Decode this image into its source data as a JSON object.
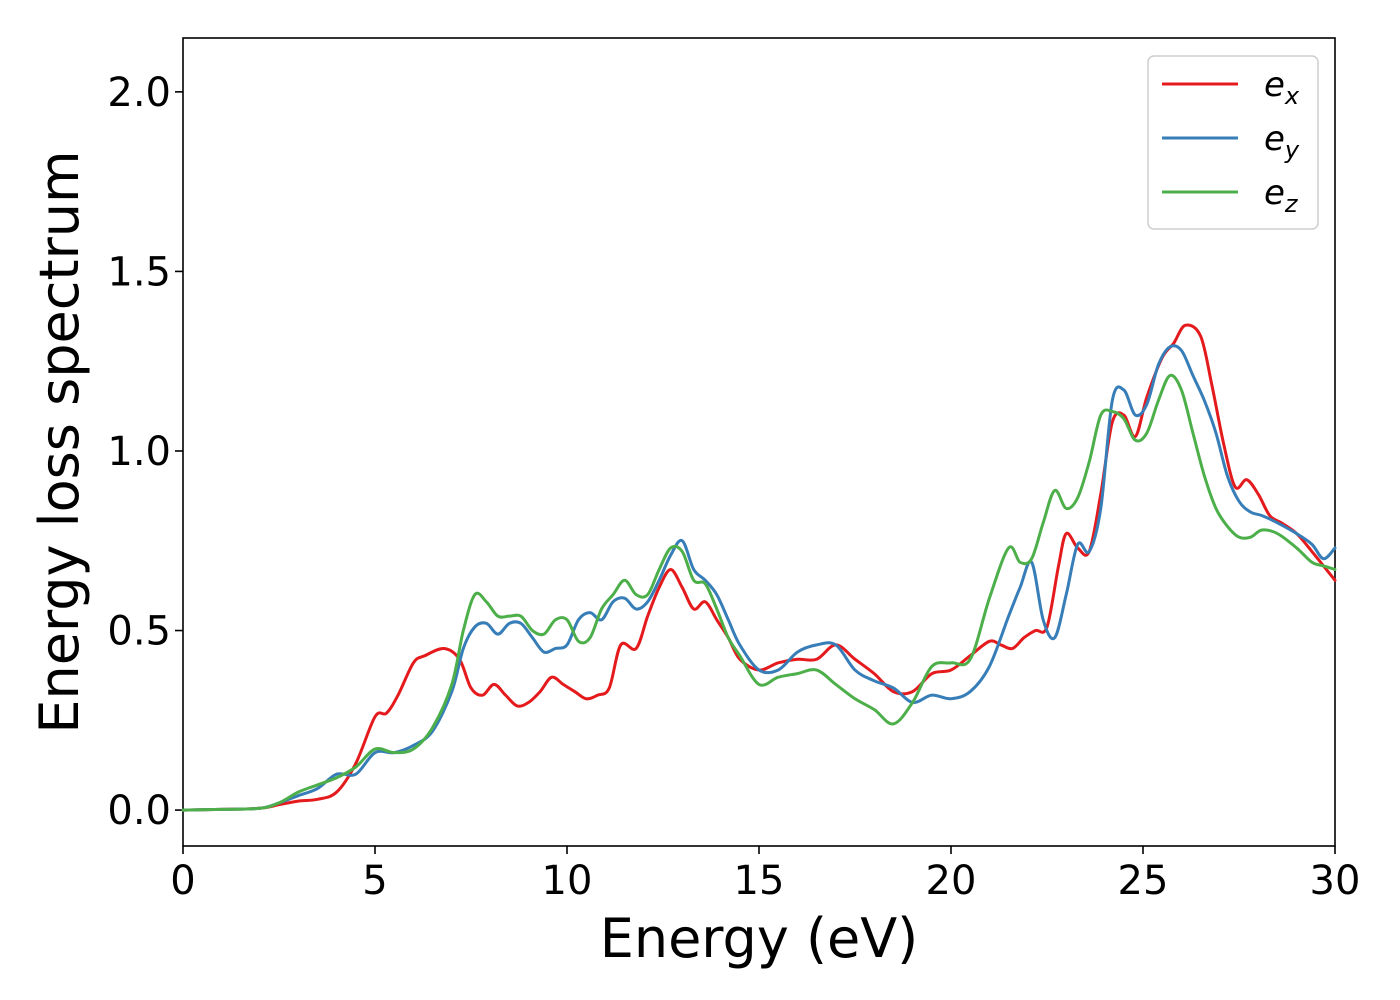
{
  "chart_data": {
    "type": "line",
    "title": "",
    "xlabel": "Energy (eV)",
    "ylabel": "Energy loss spectrum",
    "xlim": [
      0,
      30
    ],
    "ylim": [
      -0.1,
      2.15
    ],
    "xticks": [
      0,
      5,
      10,
      15,
      20,
      25,
      30
    ],
    "xtick_labels": [
      "0",
      "5",
      "10",
      "15",
      "20",
      "25",
      "30"
    ],
    "yticks": [
      0.0,
      0.5,
      1.0,
      1.5,
      2.0
    ],
    "ytick_labels": [
      "0.0",
      "0.5",
      "1.0",
      "1.5",
      "2.0"
    ],
    "grid": false,
    "legend_position": "top-right",
    "series": [
      {
        "name": "e_x",
        "name_base": "e",
        "name_sub": "x",
        "color": "#e41a1c",
        "x": [
          0,
          1,
          2,
          2.5,
          3,
          3.5,
          4,
          4.5,
          5,
          5.3,
          5.6,
          6,
          6.3,
          6.8,
          7.2,
          7.5,
          7.8,
          8.1,
          8.4,
          8.7,
          9.0,
          9.3,
          9.6,
          9.9,
          10.2,
          10.5,
          10.8,
          11.1,
          11.4,
          11.8,
          12.1,
          12.4,
          12.7,
          13.0,
          13.3,
          13.6,
          13.9,
          14.2,
          14.5,
          15.0,
          15.5,
          16.0,
          16.5,
          17.0,
          17.5,
          18.0,
          18.5,
          19.0,
          19.5,
          20.0,
          20.5,
          21.0,
          21.3,
          21.6,
          21.9,
          22.2,
          22.5,
          22.8,
          23.0,
          23.3,
          23.6,
          23.9,
          24.2,
          24.5,
          24.8,
          25.1,
          25.5,
          25.8,
          26.1,
          26.5,
          26.8,
          27.1,
          27.4,
          27.7,
          28.0,
          28.3,
          28.6,
          29.0,
          29.4,
          29.7,
          30.0
        ],
        "y": [
          0,
          0.002,
          0.005,
          0.015,
          0.025,
          0.03,
          0.05,
          0.13,
          0.26,
          0.27,
          0.32,
          0.41,
          0.43,
          0.45,
          0.42,
          0.34,
          0.32,
          0.35,
          0.32,
          0.29,
          0.3,
          0.33,
          0.37,
          0.35,
          0.33,
          0.31,
          0.32,
          0.34,
          0.46,
          0.45,
          0.54,
          0.62,
          0.67,
          0.62,
          0.56,
          0.58,
          0.53,
          0.48,
          0.42,
          0.39,
          0.41,
          0.42,
          0.42,
          0.46,
          0.42,
          0.38,
          0.33,
          0.33,
          0.38,
          0.39,
          0.43,
          0.47,
          0.46,
          0.45,
          0.48,
          0.5,
          0.51,
          0.68,
          0.77,
          0.73,
          0.72,
          0.88,
          1.08,
          1.1,
          1.04,
          1.15,
          1.26,
          1.3,
          1.35,
          1.32,
          1.18,
          1.02,
          0.9,
          0.92,
          0.88,
          0.82,
          0.8,
          0.77,
          0.72,
          0.68,
          0.64
        ]
      },
      {
        "name": "e_y",
        "name_base": "e",
        "name_sub": "y",
        "color": "#377eb8",
        "x": [
          0,
          1,
          2,
          2.5,
          3,
          3.5,
          4,
          4.5,
          5,
          5.5,
          6,
          6.5,
          7,
          7.3,
          7.6,
          7.9,
          8.2,
          8.5,
          8.8,
          9.1,
          9.4,
          9.7,
          10.0,
          10.3,
          10.6,
          10.9,
          11.2,
          11.5,
          11.8,
          12.1,
          12.4,
          12.7,
          13.0,
          13.3,
          13.6,
          13.9,
          14.2,
          14.5,
          15.0,
          15.5,
          16.0,
          16.5,
          17.0,
          17.5,
          18.0,
          18.5,
          19.0,
          19.5,
          20.0,
          20.5,
          21.0,
          21.5,
          21.8,
          22.1,
          22.4,
          22.7,
          23.0,
          23.3,
          23.6,
          23.9,
          24.2,
          24.5,
          24.8,
          25.1,
          25.4,
          25.7,
          26.0,
          26.3,
          26.6,
          26.9,
          27.2,
          27.5,
          27.8,
          28.1,
          28.5,
          29.0,
          29.4,
          29.7,
          30.0
        ],
        "y": [
          0,
          0.002,
          0.005,
          0.02,
          0.04,
          0.06,
          0.1,
          0.1,
          0.16,
          0.16,
          0.18,
          0.22,
          0.33,
          0.45,
          0.51,
          0.52,
          0.49,
          0.52,
          0.52,
          0.48,
          0.44,
          0.45,
          0.46,
          0.53,
          0.55,
          0.53,
          0.58,
          0.59,
          0.56,
          0.58,
          0.64,
          0.71,
          0.75,
          0.67,
          0.64,
          0.6,
          0.53,
          0.46,
          0.39,
          0.39,
          0.44,
          0.46,
          0.46,
          0.39,
          0.36,
          0.34,
          0.3,
          0.32,
          0.31,
          0.33,
          0.4,
          0.54,
          0.62,
          0.69,
          0.53,
          0.48,
          0.6,
          0.74,
          0.72,
          0.84,
          1.14,
          1.17,
          1.1,
          1.13,
          1.24,
          1.29,
          1.28,
          1.21,
          1.14,
          1.05,
          0.93,
          0.86,
          0.83,
          0.82,
          0.8,
          0.77,
          0.74,
          0.7,
          0.73
        ]
      },
      {
        "name": "e_z",
        "name_base": "e",
        "name_sub": "z",
        "color": "#4daf4a",
        "x": [
          0,
          1,
          2,
          2.5,
          3,
          3.5,
          4,
          4.5,
          5,
          5.5,
          6,
          6.5,
          7,
          7.3,
          7.6,
          7.9,
          8.2,
          8.5,
          8.8,
          9.1,
          9.4,
          9.7,
          10.0,
          10.3,
          10.6,
          10.9,
          11.2,
          11.5,
          11.8,
          12.1,
          12.4,
          12.7,
          13.0,
          13.3,
          13.6,
          13.9,
          14.2,
          14.5,
          15.0,
          15.5,
          16.0,
          16.5,
          17.0,
          17.5,
          18.0,
          18.5,
          19.0,
          19.5,
          20.0,
          20.5,
          21.0,
          21.5,
          21.8,
          22.1,
          22.4,
          22.7,
          23.0,
          23.3,
          23.6,
          23.9,
          24.2,
          24.5,
          24.8,
          25.1,
          25.4,
          25.7,
          26.0,
          26.3,
          26.6,
          26.9,
          27.2,
          27.5,
          27.8,
          28.1,
          28.5,
          29.0,
          29.4,
          29.7,
          30.0
        ],
        "y": [
          0,
          0.002,
          0.005,
          0.02,
          0.05,
          0.07,
          0.09,
          0.12,
          0.17,
          0.16,
          0.17,
          0.23,
          0.35,
          0.5,
          0.6,
          0.58,
          0.54,
          0.54,
          0.54,
          0.5,
          0.49,
          0.53,
          0.53,
          0.47,
          0.48,
          0.56,
          0.6,
          0.64,
          0.6,
          0.6,
          0.67,
          0.73,
          0.72,
          0.64,
          0.63,
          0.56,
          0.48,
          0.43,
          0.35,
          0.37,
          0.38,
          0.39,
          0.35,
          0.31,
          0.28,
          0.24,
          0.3,
          0.4,
          0.41,
          0.42,
          0.59,
          0.73,
          0.69,
          0.7,
          0.8,
          0.89,
          0.84,
          0.87,
          0.97,
          1.1,
          1.11,
          1.09,
          1.03,
          1.05,
          1.14,
          1.21,
          1.17,
          1.05,
          0.93,
          0.84,
          0.79,
          0.76,
          0.76,
          0.78,
          0.77,
          0.73,
          0.69,
          0.68,
          0.67
        ]
      }
    ]
  }
}
